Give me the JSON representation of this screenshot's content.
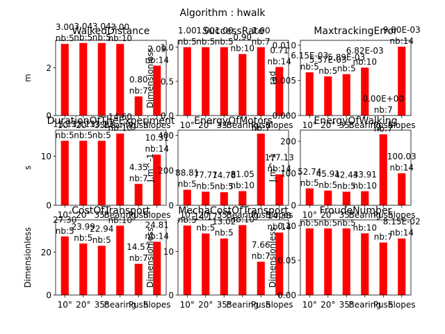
{
  "suptitle": "Algorithm : hwalk",
  "bar_color": "#ff0000",
  "categories": [
    "10°",
    "20°",
    "35°",
    "Bearing",
    "Push",
    "Slopes"
  ],
  "chart_data": [
    {
      "type": "bar",
      "title": "WalkedDistance",
      "ylabel": "m",
      "ylim": [
        0,
        3.15
      ],
      "yticks": [
        0,
        2
      ],
      "ytick_labels": [
        "0",
        "2"
      ],
      "values": [
        3.0,
        3.04,
        3.04,
        3.0,
        0.8,
        2.09
      ],
      "value_labels": [
        "3.00",
        "3.04",
        "3.04",
        "3.00",
        "0.80",
        "2.09"
      ],
      "n_labels": [
        "nb:5",
        "nb:5",
        "nb:5",
        "nb:10",
        "nb:7",
        "nb:14"
      ]
    },
    {
      "type": "bar",
      "title": "SuccessRate",
      "ylabel": "Dimensionless",
      "ylim": [
        0,
        1.1
      ],
      "yticks": [
        0,
        0.5,
        1.0
      ],
      "ytick_labels": [
        "0.0",
        "0.5",
        "1.0"
      ],
      "values": [
        1.0,
        1.0,
        1.0,
        0.9,
        1.0,
        0.71
      ],
      "value_labels": [
        "1.00",
        "1.00",
        "1.00",
        "0.90",
        "1.00",
        "0.71"
      ],
      "n_labels": [
        "nb:5",
        "nb:5",
        "nb:5",
        "nb:10",
        "nb:7",
        "nb:14"
      ]
    },
    {
      "type": "bar",
      "title": "MaxtrackingError",
      "ylabel": "rad",
      "ylim": [
        0,
        0.0107
      ],
      "yticks": [
        0,
        0.005,
        0.01
      ],
      "ytick_labels": [
        "0.000",
        "0.005",
        "0.010"
      ],
      "values": [
        0.00615,
        0.00557,
        0.00589,
        0.00682,
        0.0,
        0.0098
      ],
      "value_labels": [
        "6.15E-03",
        "5.57E-03",
        "5.89E-03",
        "6.82E-03",
        "0.00E+00",
        "9.80E-03"
      ],
      "n_labels": [
        "nb:5",
        "nb:5",
        "nb:5",
        "nb:10",
        "nb:7",
        "nb:14"
      ]
    },
    {
      "type": "bar",
      "title": "DurationOfTheExperiment",
      "ylabel": "s",
      "ylim": [
        0,
        15.3
      ],
      "yticks": [
        0,
        10
      ],
      "ytick_labels": [
        "0",
        "10"
      ],
      "values": [
        13.13,
        13.13,
        13.13,
        14.6,
        4.35,
        10.31
      ],
      "value_labels": [
        "13.13",
        "13.13",
        "13.13",
        "14.60",
        "4.35",
        "10.31"
      ],
      "n_labels": [
        "nb:5",
        "nb:5",
        "nb:5",
        "nb:10",
        "nb:7",
        "nb:14"
      ]
    },
    {
      "type": "bar",
      "title": "EnergyOfMotors",
      "ylabel": "J.m^-1",
      "ylim": [
        0,
        430
      ],
      "yticks": [
        0,
        200,
        400
      ],
      "ytick_labels": [
        "0",
        "200",
        "400"
      ],
      "values": [
        88.81,
        77.71,
        74.78,
        81.05,
        410.0,
        177.13
      ],
      "value_labels": [
        "88.81",
        "77.71",
        "74.78",
        "81.05",
        "",
        "177.13"
      ],
      "n_labels": [
        "nb:5",
        "nb:5",
        "nb:5",
        "nb:10",
        "nb:7",
        "nb:14"
      ]
    },
    {
      "type": "bar",
      "title": "EnergyOfWalking",
      "ylabel": "J.m^-1",
      "ylim": [
        0,
        235
      ],
      "yticks": [
        0,
        100,
        200
      ],
      "ytick_labels": [
        "0",
        "100",
        "200"
      ],
      "values": [
        52.74,
        45.91,
        42.43,
        43.91,
        222.0,
        100.03
      ],
      "value_labels": [
        "52.74",
        "45.91",
        "42.43",
        "43.91",
        "",
        "100.03"
      ],
      "n_labels": [
        "nb:5",
        "nb:5",
        "nb:5",
        "nb:10",
        "nb:7",
        "nb:14"
      ]
    },
    {
      "type": "bar",
      "title": "CostOfTransport",
      "ylabel": "Dimensionless",
      "ylim": [
        0,
        35
      ],
      "yticks": [
        0,
        20
      ],
      "ytick_labels": [
        "0",
        "20"
      ],
      "values": [
        27.3,
        23.99,
        22.94,
        32.3,
        14.57,
        24.81
      ],
      "value_labels": [
        "27.30",
        "23.99",
        "22.94",
        "",
        "14.57",
        "24.81"
      ],
      "n_labels": [
        "nb:5",
        "nb:5",
        "nb:5",
        "nb:10",
        "nb:7",
        "nb:14"
      ]
    },
    {
      "type": "bar",
      "title": "MechaCostOfTransport",
      "ylabel": "Dimensionless",
      "ylim": [
        0,
        17.3
      ],
      "yticks": [
        0,
        10
      ],
      "ytick_labels": [
        "0",
        "10"
      ],
      "values": [
        16.0,
        14.17,
        13.02,
        16.1,
        7.66,
        14.38
      ],
      "value_labels": [
        "",
        "14.17",
        "13.02",
        "",
        "7.66",
        "14.38"
      ],
      "n_labels": [
        "nb:5",
        "nb:5",
        "nb:5",
        "nb:10",
        "nb:7",
        "nb:14"
      ]
    },
    {
      "type": "bar",
      "title": "FroudeNumber",
      "ylabel": "Dimensionless",
      "ylim": [
        0,
        0.1083
      ],
      "yticks": [
        0,
        0.05,
        0.1
      ],
      "ytick_labels": [
        "0.00",
        "0.05",
        "0.10"
      ],
      "values": [
        0.096,
        0.096,
        0.096,
        0.0889,
        0.0757,
        0.0815
      ],
      "value_labels": [
        "",
        "",
        "",
        "",
        "",
        "8.15E-02"
      ],
      "n_labels": [
        "nb:5",
        "nb:5",
        "nb:5",
        "nb:10",
        "nb:7",
        "nb:14"
      ]
    }
  ]
}
